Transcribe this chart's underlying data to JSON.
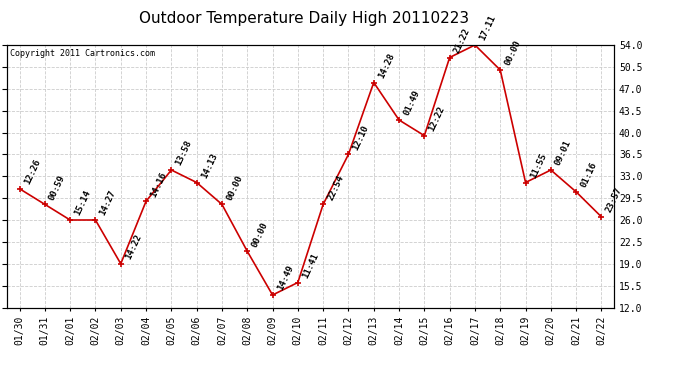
{
  "title": "Outdoor Temperature Daily High 20110223",
  "copyright": "Copyright 2011 Cartronics.com",
  "dates": [
    "01/30",
    "01/31",
    "02/01",
    "02/02",
    "02/03",
    "02/04",
    "02/05",
    "02/06",
    "02/07",
    "02/08",
    "02/09",
    "02/10",
    "02/11",
    "02/12",
    "02/13",
    "02/14",
    "02/15",
    "02/16",
    "02/17",
    "02/18",
    "02/19",
    "02/20",
    "02/21",
    "02/22"
  ],
  "values": [
    31.0,
    28.5,
    26.0,
    26.0,
    19.0,
    29.0,
    34.0,
    32.0,
    28.5,
    21.0,
    14.0,
    16.0,
    28.5,
    36.5,
    48.0,
    42.0,
    39.5,
    52.0,
    54.0,
    50.0,
    32.0,
    34.0,
    30.5,
    26.5
  ],
  "labels": [
    "12:26",
    "00:59",
    "15:14",
    "14:27",
    "14:22",
    "14:16",
    "13:58",
    "14:13",
    "00:00",
    "00:00",
    "14:49",
    "11:41",
    "22:54",
    "12:10",
    "14:28",
    "01:49",
    "12:22",
    "21:22",
    "17:11",
    "00:00",
    "11:55",
    "09:01",
    "01:16",
    "23:57"
  ],
  "ylim": [
    12.0,
    54.0
  ],
  "yticks": [
    12.0,
    15.5,
    19.0,
    22.5,
    26.0,
    29.5,
    33.0,
    36.5,
    40.0,
    43.5,
    47.0,
    50.5,
    54.0
  ],
  "line_color": "#cc0000",
  "marker_color": "#cc0000",
  "bg_color": "#ffffff",
  "grid_color": "#cccccc",
  "title_fontsize": 11,
  "label_fontsize": 6.5,
  "tick_fontsize": 7,
  "copyright_fontsize": 6
}
